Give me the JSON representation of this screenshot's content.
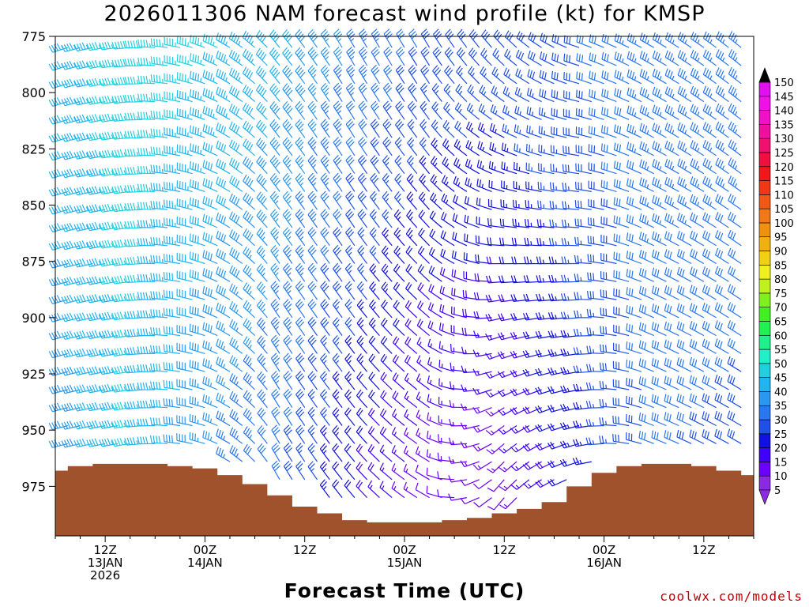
{
  "chart_data": {
    "type": "wind-barb-profile",
    "title": "2026011306 NAM forecast wind profile (kt) for KMSP",
    "xlabel": "Forecast Time (UTC)",
    "ylabel": "",
    "y_ticks": [
      775,
      800,
      825,
      850,
      875,
      900,
      925,
      950,
      975
    ],
    "ylim": [
      775,
      997
    ],
    "x_tick_labels": [
      {
        "hour": 6,
        "lines": [
          "12Z",
          "13JAN",
          "2026"
        ]
      },
      {
        "hour": 18,
        "lines": [
          "00Z",
          "14JAN"
        ]
      },
      {
        "hour": 30,
        "lines": [
          "12Z"
        ]
      },
      {
        "hour": 42,
        "lines": [
          "00Z",
          "15JAN"
        ]
      },
      {
        "hour": 54,
        "lines": [
          "12Z"
        ]
      },
      {
        "hour": 66,
        "lines": [
          "00Z",
          "16JAN"
        ]
      },
      {
        "hour": 78,
        "lines": [
          "12Z"
        ]
      }
    ],
    "xlim": [
      0,
      84
    ],
    "surface_pressure": [
      {
        "hour": 0,
        "p": 968
      },
      {
        "hour": 3,
        "p": 966
      },
      {
        "hour": 6,
        "p": 965
      },
      {
        "hour": 9,
        "p": 965
      },
      {
        "hour": 12,
        "p": 965
      },
      {
        "hour": 15,
        "p": 966
      },
      {
        "hour": 18,
        "p": 967
      },
      {
        "hour": 21,
        "p": 970
      },
      {
        "hour": 24,
        "p": 974
      },
      {
        "hour": 27,
        "p": 979
      },
      {
        "hour": 30,
        "p": 984
      },
      {
        "hour": 33,
        "p": 987
      },
      {
        "hour": 36,
        "p": 990
      },
      {
        "hour": 39,
        "p": 991
      },
      {
        "hour": 42,
        "p": 991
      },
      {
        "hour": 45,
        "p": 991
      },
      {
        "hour": 48,
        "p": 990
      },
      {
        "hour": 51,
        "p": 989
      },
      {
        "hour": 54,
        "p": 987
      },
      {
        "hour": 57,
        "p": 985
      },
      {
        "hour": 60,
        "p": 982
      },
      {
        "hour": 63,
        "p": 975
      },
      {
        "hour": 66,
        "p": 969
      },
      {
        "hour": 69,
        "p": 966
      },
      {
        "hour": 72,
        "p": 965
      },
      {
        "hour": 75,
        "p": 965
      },
      {
        "hour": 78,
        "p": 966
      },
      {
        "hour": 81,
        "p": 968
      },
      {
        "hour": 84,
        "p": 970
      }
    ],
    "wind_keyframes": [
      {
        "hour": 0,
        "upper": {
          "dir": 250,
          "spd": 42
        },
        "lower": {
          "dir": 255,
          "spd": 35
        }
      },
      {
        "hour": 9,
        "upper": {
          "dir": 265,
          "spd": 48
        },
        "lower": {
          "dir": 260,
          "spd": 45
        }
      },
      {
        "hour": 18,
        "upper": {
          "dir": 290,
          "spd": 46
        },
        "lower": {
          "dir": 285,
          "spd": 35
        }
      },
      {
        "hour": 27,
        "upper": {
          "dir": 320,
          "spd": 42
        },
        "lower": {
          "dir": 330,
          "spd": 30
        }
      },
      {
        "hour": 36,
        "upper": {
          "dir": 330,
          "spd": 35
        },
        "lower": {
          "dir": 320,
          "spd": 20
        }
      },
      {
        "hour": 45,
        "upper": {
          "dir": 330,
          "spd": 30
        },
        "lower": {
          "dir": 300,
          "spd": 12
        }
      },
      {
        "hour": 54,
        "upper": {
          "dir": 320,
          "spd": 28
        },
        "lower": {
          "dir": 220,
          "spd": 12
        }
      },
      {
        "hour": 63,
        "upper": {
          "dir": 290,
          "spd": 30
        },
        "lower": {
          "dir": 250,
          "spd": 22
        }
      },
      {
        "hour": 72,
        "upper": {
          "dir": 300,
          "spd": 35
        },
        "lower": {
          "dir": 290,
          "spd": 30
        }
      },
      {
        "hour": 84,
        "upper": {
          "dir": 310,
          "spd": 35
        },
        "lower": {
          "dir": 300,
          "spd": 28
        }
      }
    ],
    "colorbar": {
      "labels": [
        5,
        10,
        15,
        20,
        25,
        30,
        35,
        40,
        45,
        50,
        55,
        60,
        65,
        70,
        75,
        80,
        85,
        90,
        95,
        100,
        105,
        110,
        115,
        120,
        125,
        130,
        135,
        140,
        145,
        150
      ],
      "colors": [
        "#8a2be2",
        "#6a00ff",
        "#4000ff",
        "#1010e0",
        "#1e50e8",
        "#2a78f0",
        "#2a98f0",
        "#20b4f0",
        "#20d0e0",
        "#20f0c8",
        "#20f08c",
        "#20f050",
        "#40f020",
        "#80f020",
        "#c0f020",
        "#f0f020",
        "#f0d010",
        "#f0b010",
        "#f09010",
        "#f07818",
        "#f05818",
        "#f03818",
        "#f01818",
        "#f01040",
        "#f01070",
        "#f010a0",
        "#f010c8",
        "#f010e8",
        "#e010f0",
        "#000000"
      ]
    },
    "grid": false,
    "legend": "right"
  },
  "footer": {
    "credit": "coolwx.com/models"
  }
}
